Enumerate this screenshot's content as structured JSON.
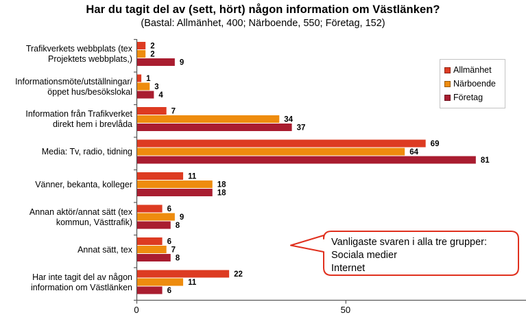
{
  "title": "Har du tagit del av (sett, hört) någon information om Västlänken?",
  "subtitle": "(Bastal: Allmänhet, 400; Närboende, 550; Företag, 152)",
  "chart_data": {
    "type": "bar",
    "orientation": "horizontal",
    "title": "Har du tagit del av (sett, hört) någon information om Västlänken?",
    "subtitle": "(Bastal: Allmänhet, 400; Närboende, 550; Företag, 152)",
    "categories": [
      "Trafikverkets webbplats (tex\nProjektets webbplats,)",
      "Informationsmöte/utställningar/\nöppet hus/besökslokal",
      "Information från Trafikverket\ndirekt hem i brevlåda",
      "Media: Tv, radio, tidning",
      "Vänner, bekanta, kolleger",
      "Annan aktör/annat sätt (tex\nkommun, Västtrafik)",
      "Annat sätt, tex",
      "Har inte tagit del av någon\ninformation om Västlänken"
    ],
    "series": [
      {
        "name": "Allmänhet",
        "color": "#DD3B22",
        "values": [
          2,
          1,
          7,
          69,
          11,
          6,
          6,
          22
        ]
      },
      {
        "name": "Närboende",
        "color": "#EE8C0E",
        "values": [
          2,
          3,
          34,
          64,
          18,
          9,
          7,
          11
        ]
      },
      {
        "name": "Företag",
        "color": "#A91D30",
        "values": [
          9,
          4,
          37,
          81,
          18,
          8,
          8,
          6
        ]
      }
    ],
    "x_ticks": [
      0,
      50
    ],
    "xlim": [
      0,
      93
    ],
    "grid": false,
    "legend_position": "top-right",
    "value_labels": true
  },
  "callout": {
    "lines": [
      "Vanligaste svaren i alla tre grupper:",
      "Sociala medier",
      "Internet"
    ],
    "border_color": "#E0301E"
  },
  "colors": {
    "axis": "#595959",
    "allmanhet": "#DD3B22",
    "narboende": "#EE8C0E",
    "foretag": "#A91D30",
    "callout_border": "#E0301E",
    "legend_border": "#c3c3c3"
  }
}
